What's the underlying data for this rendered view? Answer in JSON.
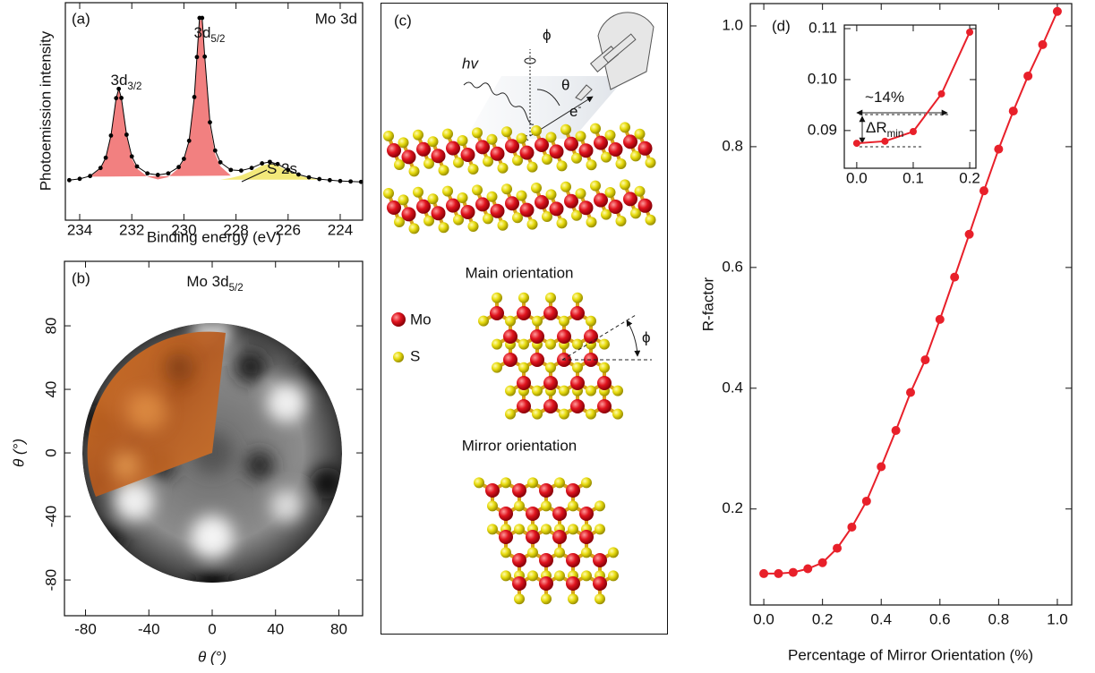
{
  "chart_data": [
    {
      "type": "line",
      "label": "(a)",
      "title": "Mo 3d",
      "x_label": "Binding energy (eV)",
      "y_label": "Photoemission intensity",
      "x": [
        234.4,
        234.0,
        233.6,
        233.2,
        233.0,
        232.8,
        232.6,
        232.5,
        232.4,
        232.2,
        232.0,
        231.8,
        231.4,
        231.0,
        230.6,
        230.2,
        230.0,
        229.8,
        229.6,
        229.5,
        229.4,
        229.3,
        229.2,
        229.0,
        228.8,
        228.6,
        228.2,
        227.8,
        227.4,
        227.0,
        226.7,
        226.4,
        226.0,
        225.6,
        225.2,
        224.8,
        224.4,
        224.0,
        223.6,
        223.2
      ],
      "series": [
        {
          "color": "#f28080",
          "fill": true,
          "values": [
            null,
            null,
            20.0,
            23.7,
            28.4,
            38.5,
            55.7,
            60.0,
            55.7,
            38.5,
            28.4,
            23.7,
            20.0,
            18.7,
            19.8,
            23.9,
            27.6,
            35.9,
            56.0,
            74.4,
            92.0,
            92.0,
            74.4,
            43.4,
            30.4,
            24.8,
            20.5,
            null,
            null,
            null,
            null,
            null,
            null,
            null,
            null,
            null,
            null,
            null,
            null,
            null
          ]
        },
        {
          "color": "#f3e97a",
          "fill": true,
          "values": [
            null,
            null,
            null,
            null,
            null,
            null,
            null,
            null,
            null,
            null,
            null,
            null,
            null,
            null,
            null,
            null,
            null,
            null,
            null,
            null,
            null,
            null,
            null,
            null,
            null,
            18.6,
            19.4,
            20.6,
            22.6,
            25.1,
            26.0,
            25.1,
            22.6,
            20.6,
            19.4,
            18.6,
            null,
            null,
            null,
            null
          ]
        },
        {
          "color": "#000000",
          "marker": true,
          "values": [
            18.4,
            19.0,
            20.3,
            24.0,
            28.7,
            38.9,
            56.1,
            60.4,
            56.2,
            39.3,
            29.3,
            24.7,
            21.5,
            20.8,
            21.5,
            24.4,
            28.2,
            36.5,
            56.6,
            75.0,
            93.0,
            93.0,
            75.2,
            45.0,
            32.0,
            26.6,
            23.1,
            22.8,
            24.0,
            26.1,
            26.8,
            25.8,
            23.1,
            21.0,
            19.7,
            18.9,
            18.4,
            18.0,
            17.8,
            17.6
          ]
        }
      ],
      "xlim": [
        234.55,
        223.14
      ],
      "xticks": [
        234,
        232,
        230,
        228,
        226,
        224
      ],
      "ylim": [
        0,
        100
      ],
      "annotations": [
        {
          "text": "3d",
          "sub": "3/2"
        },
        {
          "text": "3d",
          "sub": "5/2"
        },
        {
          "text": "S 2s"
        }
      ]
    },
    {
      "type": "image",
      "label": "(b)",
      "title": {
        "text": "Mo 3d",
        "sub": "5/2"
      },
      "x_label": "θ (°)",
      "y_label": "θ (°)",
      "xlim": [
        -93.3,
        95
      ],
      "ylim": [
        -102.5,
        120.6
      ],
      "xticks": [
        -80,
        -40,
        0,
        40,
        80
      ],
      "yticks": [
        -80,
        -40,
        0,
        40,
        80
      ]
    },
    {
      "type": "line",
      "label": "(d)",
      "x_label": "Percentage of Mirror Orientation (%)",
      "y_label": "R-factor",
      "x": [
        0,
        0.05,
        0.1,
        0.15,
        0.2,
        0.25,
        0.3,
        0.35,
        0.4,
        0.45,
        0.5,
        0.55,
        0.6,
        0.65,
        0.7,
        0.75,
        0.8,
        0.85,
        0.9,
        0.95,
        1.0
      ],
      "series": [
        {
          "color": "#e8202a",
          "marker": true,
          "values": [
            0.093,
            0.093,
            0.095,
            0.101,
            0.111,
            0.135,
            0.17,
            0.213,
            0.27,
            0.33,
            0.393,
            0.447,
            0.514,
            0.584,
            0.655,
            0.727,
            0.796,
            0.859,
            0.917,
            0.969,
            1.024
          ]
        }
      ],
      "xlim": [
        -0.046,
        1.049
      ],
      "ylim": [
        0.041,
        1.037
      ],
      "xticks": [
        {
          "value": 0,
          "label": "0.0"
        },
        0.2,
        0.4,
        0.6,
        0.8,
        {
          "value": 1,
          "label": "1.0"
        }
      ],
      "yticks": [
        0.2,
        0.4,
        0.6,
        0.8,
        {
          "value": 1,
          "label": "1.0"
        }
      ]
    },
    {
      "type": "line",
      "x": [
        0,
        0.05,
        0.1,
        0.15,
        0.2
      ],
      "series": [
        {
          "color": "#e8202a",
          "marker": true,
          "values": [
            0.0875,
            0.0879,
            0.0898,
            0.0972,
            0.1093
          ]
        }
      ],
      "xlim": [
        -0.022,
        0.211
      ],
      "ylim": [
        0.0826,
        0.1107
      ],
      "xticks": [
        {
          "value": 0,
          "label": "0.0"
        },
        0.1,
        0.2
      ],
      "yticks": [
        0.09,
        {
          "value": 0.1,
          "label": "0.10"
        },
        0.11
      ],
      "annotations": [
        {
          "text": "~14%"
        },
        {
          "text": "ΔR",
          "sub": "min"
        }
      ]
    }
  ],
  "panel_c": {
    "label": "(c)",
    "photon": "hv",
    "azimuth": "ϕ",
    "polar": "θ",
    "electron": {
      "text": "e",
      "sup": "-"
    },
    "legend": [
      "Mo",
      "S"
    ],
    "main_orientation": "Main orientation",
    "main_angle": "ϕ",
    "mirror_orientation": "Mirror orientation"
  }
}
